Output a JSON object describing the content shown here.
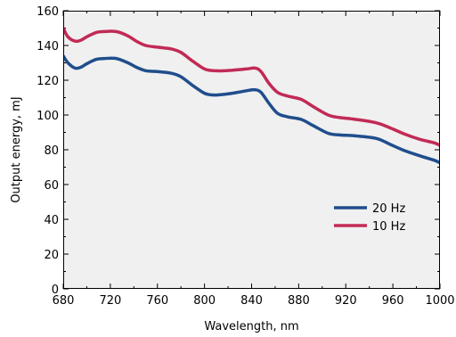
{
  "chart_data": {
    "type": "line",
    "title": "",
    "xlabel": "Wavelength, nm",
    "ylabel": "Output energy, mJ",
    "xlim": [
      680,
      1000
    ],
    "ylim": [
      0,
      160
    ],
    "xticks": [
      680,
      720,
      760,
      800,
      840,
      880,
      920,
      960,
      1000
    ],
    "yticks": [
      0,
      20,
      40,
      60,
      80,
      100,
      120,
      140,
      160
    ],
    "grid": false,
    "background": "#f0f0f0",
    "legend_position": "right-middle",
    "series": [
      {
        "name": "20 Hz",
        "color": "#1f4e8c",
        "points": [
          [
            680,
            134
          ],
          [
            684,
            130
          ],
          [
            690,
            127
          ],
          [
            695,
            127.5
          ],
          [
            700,
            129.5
          ],
          [
            708,
            132
          ],
          [
            715,
            132.5
          ],
          [
            725,
            132.5
          ],
          [
            735,
            130
          ],
          [
            742,
            127.5
          ],
          [
            750,
            125.5
          ],
          [
            760,
            125
          ],
          [
            772,
            124
          ],
          [
            780,
            122
          ],
          [
            790,
            117
          ],
          [
            800,
            112.5
          ],
          [
            808,
            111.5
          ],
          [
            818,
            112
          ],
          [
            828,
            113
          ],
          [
            836,
            114
          ],
          [
            843,
            114.5
          ],
          [
            848,
            113
          ],
          [
            855,
            106.5
          ],
          [
            862,
            101
          ],
          [
            870,
            99
          ],
          [
            882,
            97.5
          ],
          [
            892,
            94
          ],
          [
            905,
            89.5
          ],
          [
            915,
            88.5
          ],
          [
            928,
            88
          ],
          [
            946,
            86.5
          ],
          [
            958,
            83
          ],
          [
            970,
            79.5
          ],
          [
            983,
            76.5
          ],
          [
            995,
            74
          ],
          [
            1000,
            72.5
          ]
        ]
      },
      {
        "name": "10 Hz",
        "color": "#c22a55",
        "points": [
          [
            680,
            150
          ],
          [
            684,
            145
          ],
          [
            690,
            142.5
          ],
          [
            695,
            143
          ],
          [
            700,
            145
          ],
          [
            708,
            147.5
          ],
          [
            715,
            148
          ],
          [
            725,
            148
          ],
          [
            735,
            145.5
          ],
          [
            742,
            142.5
          ],
          [
            750,
            140
          ],
          [
            760,
            139
          ],
          [
            772,
            138
          ],
          [
            780,
            136
          ],
          [
            790,
            131
          ],
          [
            800,
            126.5
          ],
          [
            808,
            125.5
          ],
          [
            818,
            125.5
          ],
          [
            828,
            126
          ],
          [
            836,
            126.5
          ],
          [
            843,
            127
          ],
          [
            848,
            125
          ],
          [
            855,
            118
          ],
          [
            862,
            113
          ],
          [
            870,
            111
          ],
          [
            882,
            109
          ],
          [
            892,
            105
          ],
          [
            905,
            100
          ],
          [
            915,
            98.5
          ],
          [
            928,
            97.5
          ],
          [
            946,
            95.5
          ],
          [
            958,
            92.5
          ],
          [
            970,
            89
          ],
          [
            983,
            86
          ],
          [
            995,
            84
          ],
          [
            1000,
            82.5
          ]
        ]
      }
    ]
  }
}
